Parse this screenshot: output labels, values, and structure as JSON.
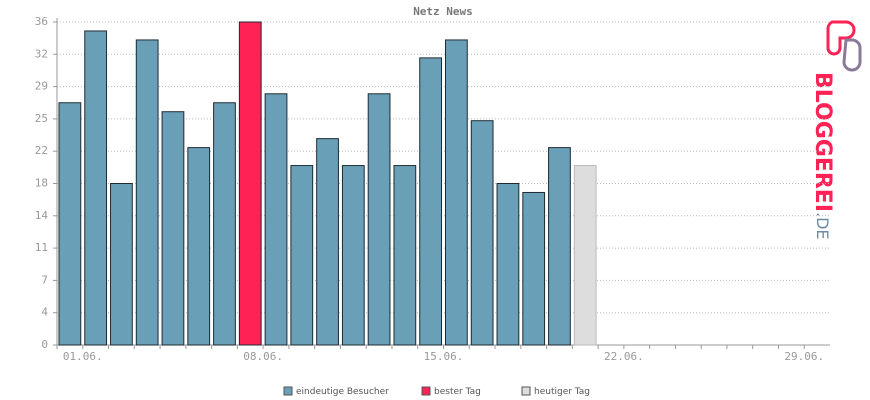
{
  "chart_data": {
    "type": "bar",
    "title": "Netz News",
    "categories": [
      null,
      "01.06.",
      null,
      null,
      null,
      null,
      null,
      null,
      "08.06.",
      null,
      null,
      null,
      null,
      null,
      null,
      "15.06.",
      null,
      null,
      null,
      null,
      null,
      null,
      "22.06.",
      null,
      null,
      null,
      null,
      null,
      null,
      "29.06."
    ],
    "series": [
      {
        "name": "eindeutige Besucher",
        "color": "#6a9fb8",
        "values": [
          27,
          35,
          18,
          34,
          26,
          22,
          27,
          null,
          28,
          20,
          23,
          20,
          28,
          20,
          32,
          34,
          25,
          18,
          17,
          22,
          null,
          null,
          null,
          null,
          null,
          null,
          null,
          null,
          null,
          null
        ]
      },
      {
        "name": "bester Tag",
        "color": "#ff2255",
        "values": [
          null,
          null,
          null,
          null,
          null,
          null,
          null,
          36,
          null,
          null,
          null,
          null,
          null,
          null,
          null,
          null,
          null,
          null,
          null,
          null,
          null,
          null,
          null,
          null,
          null,
          null,
          null,
          null,
          null,
          null
        ]
      },
      {
        "name": "heutiger Tag",
        "color": "#dddddd",
        "values": [
          null,
          null,
          null,
          null,
          null,
          null,
          null,
          null,
          null,
          null,
          null,
          null,
          null,
          null,
          null,
          null,
          null,
          null,
          null,
          null,
          20,
          null,
          null,
          null,
          null,
          null,
          null,
          null,
          null,
          null
        ]
      }
    ],
    "ylim": [
      0,
      36
    ],
    "yticks": [
      0,
      {
        "value": 3.6,
        "label": "4"
      },
      {
        "value": 7.2,
        "label": "7"
      },
      {
        "value": 10.8,
        "label": "11"
      },
      {
        "value": 14.4,
        "label": "14"
      },
      18,
      {
        "value": 21.6,
        "label": "22"
      },
      {
        "value": 25.2,
        "label": "25"
      },
      {
        "value": 28.8,
        "label": "29"
      },
      {
        "value": 32.4,
        "label": "32"
      },
      36
    ],
    "grid": true
  },
  "logo": {
    "name": "BLOGGEREI",
    "suffix": ".DE"
  }
}
